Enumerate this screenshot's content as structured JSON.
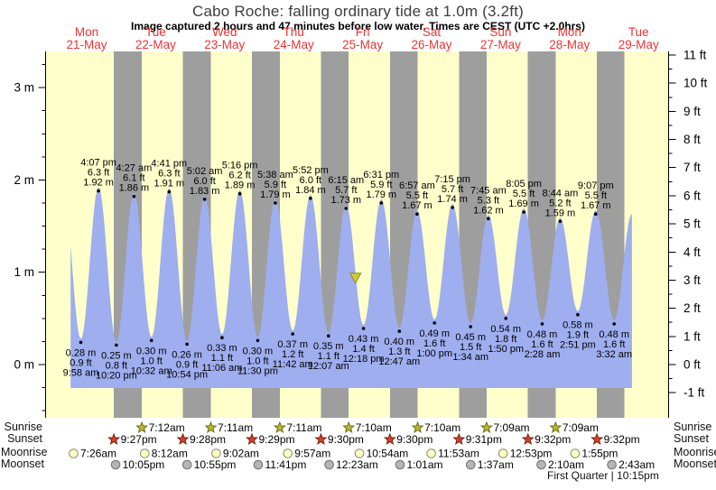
{
  "title": "Cabo Roche: falling ordinary tide at 1.0m (3.2ft)",
  "subtitle": "Image captured 2 hours and 47 minutes before low water. Times are CEST (UTC +2.0hrs)",
  "row_labels": {
    "sunrise": "Sunrise",
    "sunset": "Sunset",
    "moonrise": "Moonrise",
    "moonset": "Moonset"
  },
  "colors": {
    "day_bg": "#ffffcc",
    "night_bg": "#9e9e9e",
    "tide_fill": "#9faeef",
    "axis": "#000000",
    "day_label": "#ee3333",
    "label_text": "#000000",
    "dot": "#000000",
    "marker_fill": "#cdcd3c",
    "marker_stroke": "#8b8b1e",
    "sunrise_fill": "#b9b832",
    "sunrise_stroke": "#6f6f1d",
    "sunset_fill": "#d0432c",
    "sunset_stroke": "#7c1f12",
    "moonrise_fill": "#ffffc8",
    "moonrise_stroke": "#8a8a6a",
    "moonset_fill": "#b5b5b5",
    "moonset_stroke": "#6f6f6f"
  },
  "chart_data": {
    "type": "area",
    "title": "Cabo Roche: falling ordinary tide at 1.0m (3.2ft)",
    "subtitle": "Image captured 2 hours and 47 minutes before low water. Times are CEST (UTC +2.0hrs)",
    "xlabel": "",
    "ylabel_left": "m",
    "ylabel_right": "ft",
    "x_axis": {
      "days": [
        {
          "name": "Mon",
          "date": "21-May"
        },
        {
          "name": "Tue",
          "date": "22-May"
        },
        {
          "name": "Wed",
          "date": "23-May"
        },
        {
          "name": "Thu",
          "date": "24-May"
        },
        {
          "name": "Fri",
          "date": "25-May"
        },
        {
          "name": "Sat",
          "date": "26-May"
        },
        {
          "name": "Sun",
          "date": "27-May"
        },
        {
          "name": "Mon",
          "date": "28-May"
        },
        {
          "name": "Tue",
          "date": "29-May"
        }
      ]
    },
    "y_left": {
      "unit": "m",
      "majors": [
        0,
        1,
        2,
        3
      ],
      "minor_step": 0.25,
      "minor_range": [
        -0.5,
        3.25
      ]
    },
    "y_right": {
      "unit": "ft",
      "majors": [
        -1,
        0,
        1,
        2,
        3,
        4,
        5,
        6,
        7,
        8,
        9,
        10,
        11
      ],
      "minor_step": 0.5
    },
    "highs": [
      {
        "time": "4:07 pm",
        "ft": "6.3 ft",
        "m": "1.92 m",
        "t": 16.117,
        "v": 1.92
      },
      {
        "time": "4:27 am",
        "ft": "6.1 ft",
        "m": "1.86 m",
        "t": 28.45,
        "v": 1.86
      },
      {
        "time": "4:41 pm",
        "ft": "6.3 ft",
        "m": "1.91 m",
        "t": 40.683,
        "v": 1.91
      },
      {
        "time": "5:02 am",
        "ft": "6.0 ft",
        "m": "1.83 m",
        "t": 53.033,
        "v": 1.83
      },
      {
        "time": "5:16 pm",
        "ft": "6.2 ft",
        "m": "1.89 m",
        "t": 65.267,
        "v": 1.89
      },
      {
        "time": "5:38 am",
        "ft": "5.9 ft",
        "m": "1.79 m",
        "t": 77.633,
        "v": 1.79
      },
      {
        "time": "5:52 pm",
        "ft": "6.0 ft",
        "m": "1.84 m",
        "t": 89.867,
        "v": 1.84
      },
      {
        "time": "6:15 am",
        "ft": "5.7 ft",
        "m": "1.73 m",
        "t": 102.25,
        "v": 1.73
      },
      {
        "time": "6:31 pm",
        "ft": "5.9 ft",
        "m": "1.79 m",
        "t": 114.517,
        "v": 1.79
      },
      {
        "time": "6:57 am",
        "ft": "5.5 ft",
        "m": "1.67 m",
        "t": 126.95,
        "v": 1.67
      },
      {
        "time": "7:15 pm",
        "ft": "5.7 ft",
        "m": "1.74 m",
        "t": 139.25,
        "v": 1.74
      },
      {
        "time": "7:45 am",
        "ft": "5.3 ft",
        "m": "1.62 m",
        "t": 151.75,
        "v": 1.62
      },
      {
        "time": "8:05 pm",
        "ft": "5.5 ft",
        "m": "1.69 m",
        "t": 164.083,
        "v": 1.69
      },
      {
        "time": "8:44 am",
        "ft": "5.2 ft",
        "m": "1.59 m",
        "t": 176.733,
        "v": 1.59
      },
      {
        "time": "9:07 pm",
        "ft": "5.5 ft",
        "m": "1.67 m",
        "t": 189.117,
        "v": 1.67
      }
    ],
    "lows": [
      {
        "m": "0.28 m",
        "ft": "0.9 ft",
        "time": "9:58 am",
        "t": 9.967,
        "v": 0.28
      },
      {
        "m": "0.25 m",
        "ft": "0.8 ft",
        "time": "10:20 pm",
        "t": 22.333,
        "v": 0.25
      },
      {
        "m": "0.30 m",
        "ft": "1.0 ft",
        "time": "10:32 am",
        "t": 34.533,
        "v": 0.3
      },
      {
        "m": "0.26 m",
        "ft": "0.9 ft",
        "time": "10:54 pm",
        "t": 46.9,
        "v": 0.26
      },
      {
        "m": "0.33 m",
        "ft": "1.1 ft",
        "time": "11:06 am",
        "t": 59.1,
        "v": 0.33
      },
      {
        "m": "0.30 m",
        "ft": "1.0 ft",
        "time": "11:30 pm",
        "t": 71.5,
        "v": 0.3
      },
      {
        "m": "0.37 m",
        "ft": "1.2 ft",
        "time": "11:42 am",
        "t": 83.7,
        "v": 0.37
      },
      {
        "m": "0.35 m",
        "ft": "1.1 ft",
        "time": "12:07 am",
        "t": 96.117,
        "v": 0.35
      },
      {
        "m": "0.43 m",
        "ft": "1.4 ft",
        "time": "12:18 pm",
        "t": 108.3,
        "v": 0.43
      },
      {
        "m": "0.40 m",
        "ft": "1.3 ft",
        "time": "12:47 am",
        "t": 120.783,
        "v": 0.4
      },
      {
        "m": "0.49 m",
        "ft": "1.6 ft",
        "time": "1:00 pm",
        "t": 133.0,
        "v": 0.49
      },
      {
        "m": "0.45 m",
        "ft": "1.5 ft",
        "time": "1:34 am",
        "t": 145.567,
        "v": 0.45
      },
      {
        "m": "0.54 m",
        "ft": "1.8 ft",
        "time": "1:50 pm",
        "t": 157.833,
        "v": 0.54
      },
      {
        "m": "0.48 m",
        "ft": "1.6 ft",
        "time": "2:28 am",
        "t": 170.467,
        "v": 0.48
      },
      {
        "m": "0.58 m",
        "ft": "1.9 ft",
        "time": "2:51 pm",
        "t": 182.85,
        "v": 0.58
      },
      {
        "m": "0.48 m",
        "ft": "1.6 ft",
        "time": "3:32 am",
        "t": 195.533,
        "v": 0.48
      }
    ],
    "curve_pad_start": {
      "t": 3.85,
      "v": 1.9,
      "offchart_estimate": true
    },
    "curve_pad_end": {
      "t": 201.7,
      "v": 1.63,
      "offchart_estimate": true
    },
    "capture_marker": {
      "t": 105.52,
      "v": 0.99
    },
    "events": {
      "sunrise": [
        {
          "time": "7:12am",
          "t": 31.2
        },
        {
          "time": "7:11am",
          "t": 55.183
        },
        {
          "time": "7:11am",
          "t": 79.183
        },
        {
          "time": "7:10am",
          "t": 103.167
        },
        {
          "time": "7:10am",
          "t": 127.167
        },
        {
          "time": "7:09am",
          "t": 151.15
        },
        {
          "time": "7:09am",
          "t": 175.15
        }
      ],
      "sunset": [
        {
          "time": "9:27pm",
          "t": 21.45
        },
        {
          "time": "9:28pm",
          "t": 45.467
        },
        {
          "time": "9:29pm",
          "t": 69.483
        },
        {
          "time": "9:30pm",
          "t": 93.5
        },
        {
          "time": "9:30pm",
          "t": 117.5
        },
        {
          "time": "9:31pm",
          "t": 141.517
        },
        {
          "time": "9:32pm",
          "t": 165.533
        },
        {
          "time": "9:32pm",
          "t": 189.533
        }
      ],
      "moonrise": [
        {
          "time": "7:26am",
          "t": 7.433
        },
        {
          "time": "8:12am",
          "t": 32.2
        },
        {
          "time": "9:02am",
          "t": 57.033
        },
        {
          "time": "9:57am",
          "t": 81.95
        },
        {
          "time": "10:54am",
          "t": 106.9
        },
        {
          "time": "11:53am",
          "t": 131.883
        },
        {
          "time": "12:53pm",
          "t": 156.883
        },
        {
          "time": "1:55pm",
          "t": 181.917
        }
      ],
      "moonset": [
        {
          "time": "10:05pm",
          "t": 22.083
        },
        {
          "time": "10:55pm",
          "t": 46.917
        },
        {
          "time": "11:41pm",
          "t": 71.683
        },
        {
          "time": "12:23am",
          "t": 96.383
        },
        {
          "time": "1:01am",
          "t": 121.017
        },
        {
          "time": "1:37am",
          "t": 145.617
        },
        {
          "time": "2:10am",
          "t": 170.167
        },
        {
          "time": "2:43am",
          "t": 194.717
        }
      ]
    },
    "moon_phase": "First Quarter | 10:15pm"
  }
}
